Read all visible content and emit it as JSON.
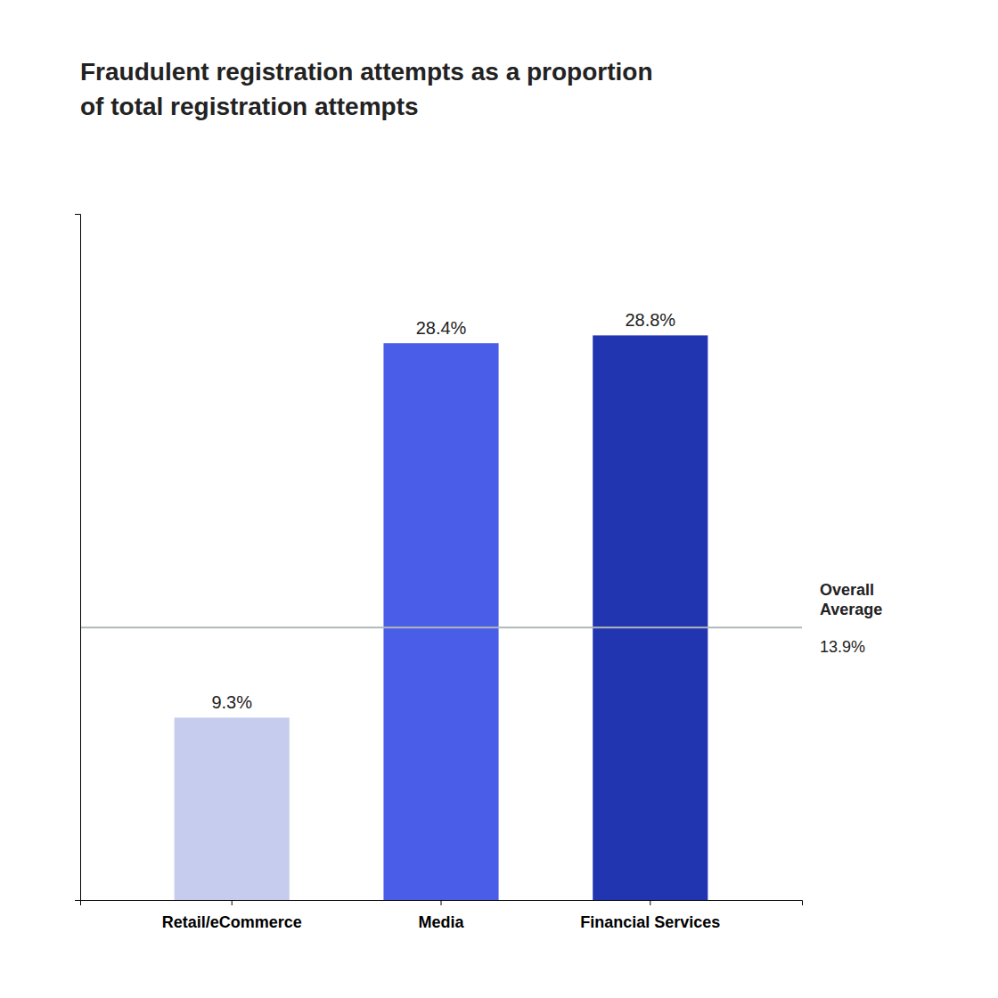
{
  "chart_data": {
    "type": "bar",
    "title": "Fraudulent registration attempts as a proportion\nof total registration attempts",
    "categories": [
      "Retail/eCommerce",
      "Media",
      "Financial Services"
    ],
    "values": [
      9.3,
      28.4,
      28.8
    ],
    "value_labels": [
      "9.3%",
      "28.4%",
      "28.8%"
    ],
    "colors": [
      "#c5ccee",
      "#4a5de8",
      "#2235b0"
    ],
    "data_labels": true,
    "ylim": [
      0,
      35
    ],
    "yticks": [],
    "tick_labels": "x",
    "grid": false,
    "reference_line": {
      "value": 13.9,
      "label": "Overall\nAverage",
      "value_label": "13.9%",
      "color": "#b0b8b8"
    }
  }
}
